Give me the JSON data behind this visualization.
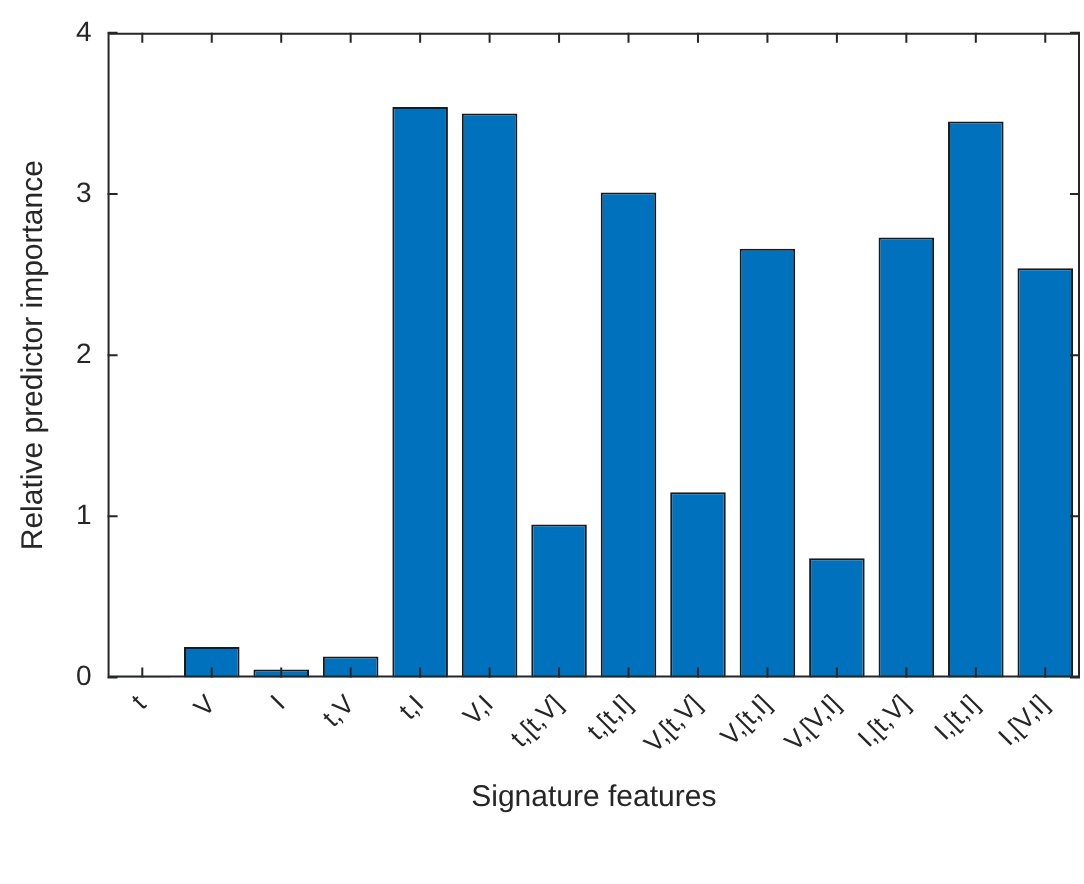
{
  "chart_data": {
    "type": "bar",
    "xlabel": "Signature features",
    "ylabel": "Relative predictor importance",
    "categories": [
      "t",
      "V",
      "I",
      "t,V",
      "t,I",
      "V,I",
      "t,[t,V]",
      "t,[t,I]",
      "V,[t,V]",
      "V,[t,I]",
      "V,[V,I]",
      "I,[t,V]",
      "I,[t,I]",
      "I,[V,I]"
    ],
    "values": [
      0.01,
      0.19,
      0.05,
      0.13,
      3.54,
      3.5,
      0.95,
      3.01,
      1.15,
      2.66,
      0.74,
      2.73,
      3.45,
      2.54
    ],
    "color": "#0072bd",
    "ylim": [
      0,
      4
    ],
    "yticks": [
      0,
      1,
      2,
      3,
      4
    ],
    "grid": false,
    "legend": false
  }
}
